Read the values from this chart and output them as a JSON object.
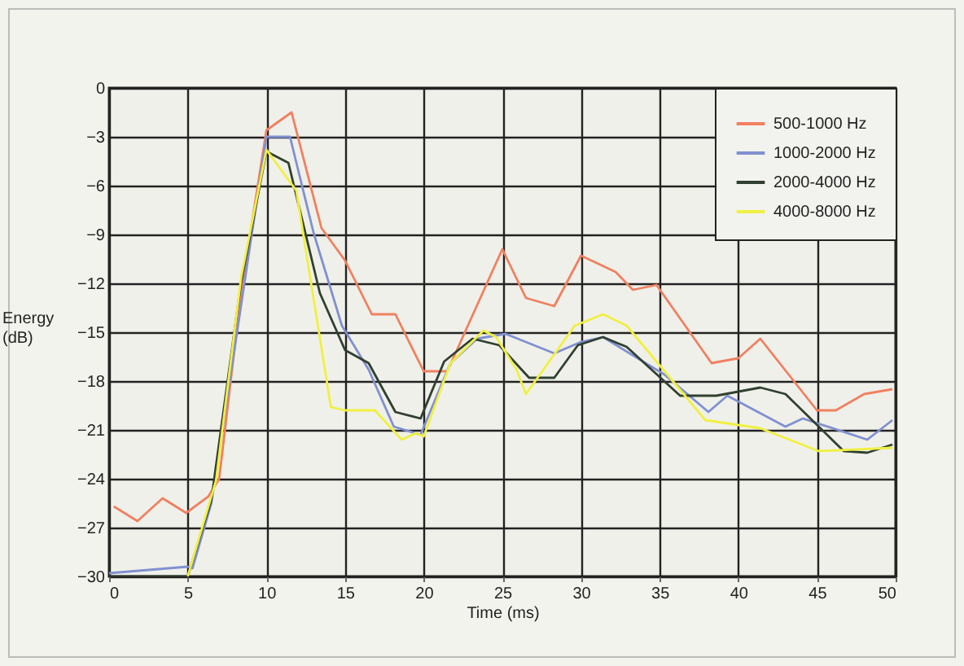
{
  "chart_data": {
    "type": "line",
    "xlabel": "Time (ms)",
    "ylabel": "Energy (dB)",
    "xlim": [
      0,
      50
    ],
    "xticks": [
      0,
      5,
      10,
      15,
      20,
      25,
      30,
      35,
      40,
      45,
      50
    ],
    "ylim": [
      -30,
      0
    ],
    "yticks": [
      0,
      -3,
      -6,
      -9,
      -12,
      -15,
      -18,
      -21,
      -24,
      -27,
      -30
    ],
    "grid": true,
    "legend": "top right",
    "line_style": "solid",
    "series": [
      {
        "name": "500-1000 Hz",
        "color": "#f08060",
        "x": [
          0.3,
          1.8,
          3.4,
          4.9,
          6.3,
          7,
          8.4,
          10,
          11.6,
          13.5,
          15,
          16.7,
          18.2,
          20,
          21.5,
          25,
          26.5,
          28.3,
          30,
          32.2,
          33.3,
          34.8,
          38.3,
          40,
          41.4,
          45,
          46.2,
          48,
          49.8
        ],
        "values": [
          -25.7,
          -26.6,
          -25.2,
          -26.1,
          -25.1,
          -24,
          -12.5,
          -2.6,
          -1.5,
          -8.6,
          -10.6,
          -13.9,
          -13.9,
          -17.4,
          -17.4,
          -9.9,
          -12.9,
          -13.4,
          -10.3,
          -11.3,
          -12.4,
          -12.1,
          -16.9,
          -16.6,
          -15.4,
          -19.8,
          -19.8,
          -18.8,
          -18.5
        ]
      },
      {
        "name": "1000-2000 Hz",
        "color": "#8090d0",
        "x": [
          0,
          5,
          5.3,
          6.5,
          10,
          11.5,
          13,
          14.8,
          16.5,
          18.1,
          19.8,
          21.7,
          23.4,
          25.2,
          28.3,
          30,
          31.4,
          35.3,
          38.1,
          39.3,
          43,
          44.1,
          48.2,
          49.8
        ],
        "values": [
          -29.8,
          -29.4,
          -29.5,
          -25.5,
          -3,
          -3,
          -8.9,
          -14.6,
          -17.3,
          -20.8,
          -21.3,
          -16.9,
          -15.4,
          -15.1,
          -16.3,
          -15.6,
          -15.3,
          -17.6,
          -19.9,
          -18.9,
          -20.8,
          -20.3,
          -21.6,
          -20.4
        ]
      },
      {
        "name": "2000-4000 Hz",
        "color": "#304030",
        "x": [
          0,
          5,
          6.5,
          8.4,
          10,
          11.4,
          13.4,
          15,
          16.5,
          18.2,
          19.8,
          21.3,
          23.1,
          24.8,
          26.7,
          28.3,
          29.8,
          31.4,
          32.9,
          36.3,
          38.6,
          41.4,
          43,
          46.7,
          48.2,
          49.8
        ],
        "values": [
          -30,
          -30,
          -25.3,
          -11.9,
          -3.9,
          -4.6,
          -12.6,
          -16.1,
          -16.9,
          -19.9,
          -20.3,
          -16.8,
          -15.4,
          -15.8,
          -17.8,
          -17.8,
          -15.8,
          -15.3,
          -15.9,
          -18.9,
          -18.9,
          -18.4,
          -18.8,
          -22.3,
          -22.4,
          -21.9
        ]
      },
      {
        "name": "4000-8000 Hz",
        "color": "#f0f040",
        "x": [
          5,
          6.8,
          8.4,
          10,
          11.9,
          14.1,
          15,
          16.9,
          18.6,
          19.5,
          20,
          21.7,
          23.8,
          24.6,
          25.9,
          26.5,
          29.6,
          31.4,
          32.9,
          37.9,
          41.4,
          45.1,
          49.8
        ],
        "values": [
          -30,
          -24.1,
          -11.6,
          -3.8,
          -6.3,
          -19.6,
          -19.8,
          -19.8,
          -21.6,
          -21.2,
          -21.4,
          -16.9,
          -14.9,
          -15.3,
          -17.3,
          -18.8,
          -14.6,
          -13.9,
          -14.6,
          -20.4,
          -20.9,
          -22.3,
          -22.1
        ]
      }
    ]
  }
}
